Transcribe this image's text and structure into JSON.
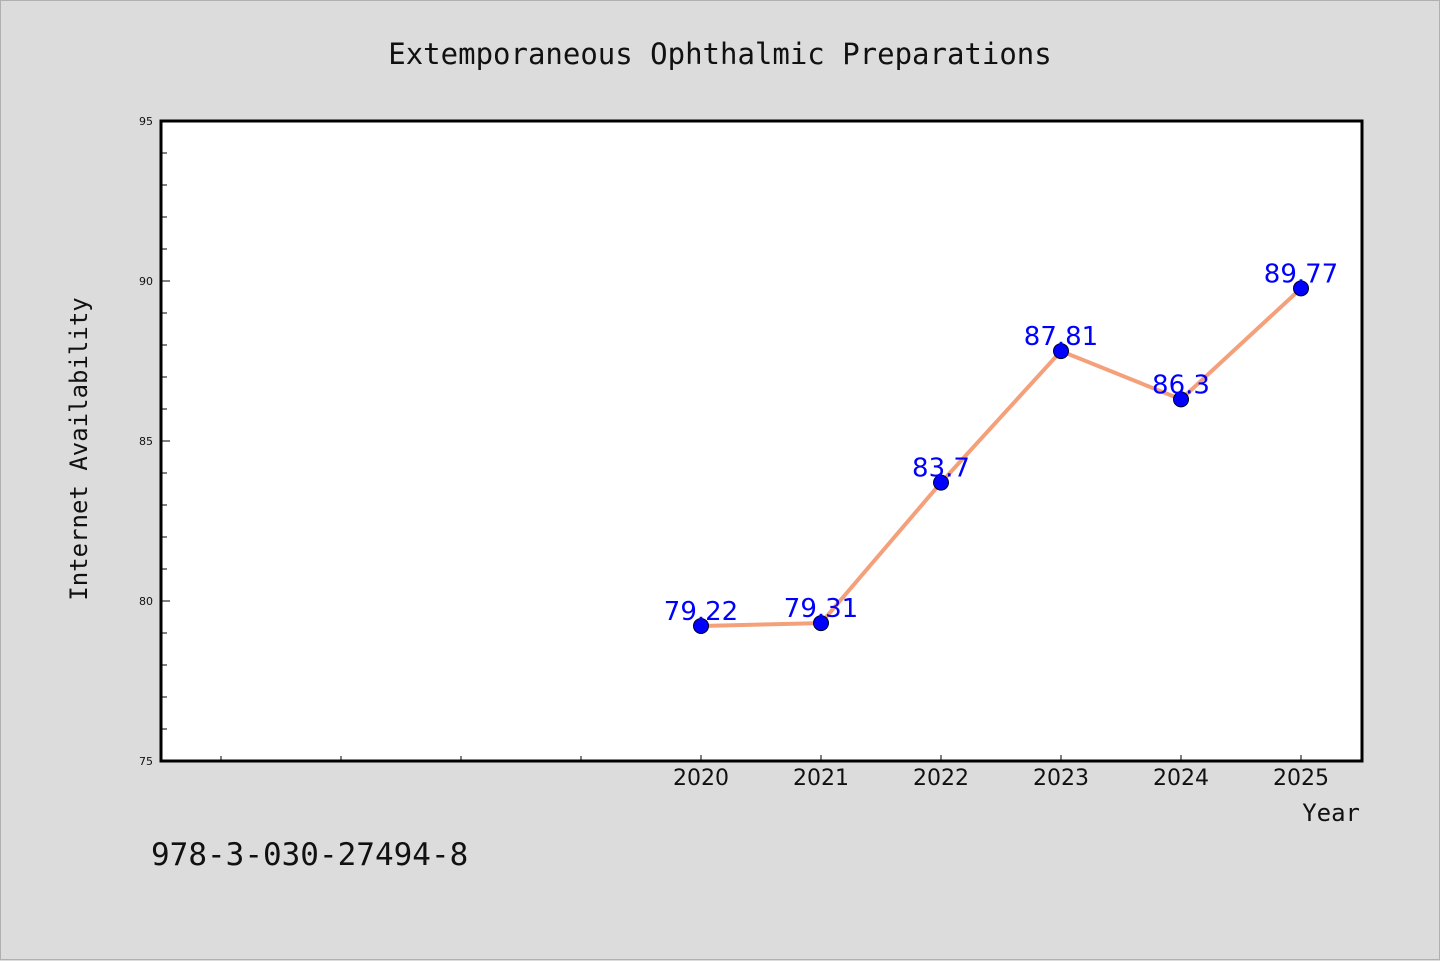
{
  "chart_data": {
    "type": "line",
    "title": "Extemporaneous Ophthalmic Preparations",
    "xlabel": "Year",
    "ylabel": "Internet Availability",
    "x": [
      "2020",
      "2021",
      "2022",
      "2023",
      "2024",
      "2025"
    ],
    "series": [
      {
        "values": [
          79.22,
          79.31,
          83.7,
          87.81,
          86.3,
          89.77
        ],
        "data_labels": [
          "79.22",
          "79.31",
          "83.7",
          "87.81",
          "86.3",
          "89.77"
        ],
        "line_color": "#f4a07a",
        "marker_color": "#0000ff"
      }
    ],
    "ylim": [
      75,
      95
    ],
    "yticks": [
      "75",
      "80",
      "85",
      "90",
      "95"
    ],
    "grid": false,
    "legend": "none",
    "footer": "978-3-030-27494-8"
  }
}
